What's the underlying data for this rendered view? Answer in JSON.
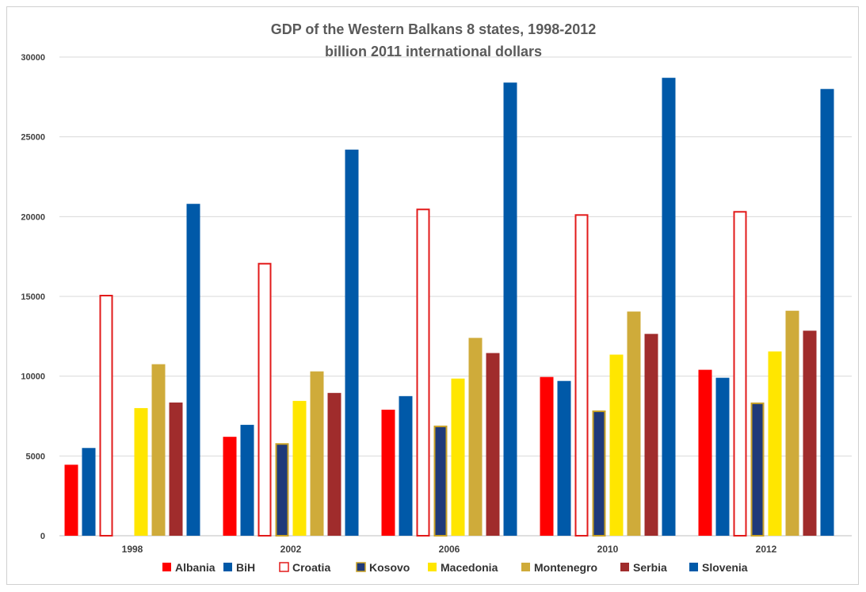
{
  "chart_data": {
    "type": "bar",
    "title": "GDP of the Western Balkans 8 states, 1998-2012",
    "subtitle": "billion 2011 international dollars",
    "categories": [
      "1998",
      "2002",
      "2006",
      "2010",
      "2012"
    ],
    "ylim": [
      0,
      30000
    ],
    "yticks": [
      0,
      5000,
      10000,
      15000,
      20000,
      25000,
      30000
    ],
    "grid": true,
    "legend_position": "bottom",
    "series": [
      {
        "name": "Albania",
        "color": "#ff0000",
        "style": "solid",
        "values": [
          4450,
          6200,
          7900,
          9950,
          10400
        ]
      },
      {
        "name": "BiH",
        "color": "#0059a8",
        "style": "solid",
        "values": [
          5500,
          6950,
          8750,
          9700,
          9900
        ]
      },
      {
        "name": "Croatia",
        "color": "#e21a1a",
        "style": "outline",
        "values": [
          15100,
          17100,
          20500,
          20150,
          20350
        ]
      },
      {
        "name": "Kosovo",
        "color": "#1f3a7a",
        "border": "#c9a227",
        "style": "bordered",
        "values": [
          null,
          5800,
          6900,
          7850,
          8350
        ]
      },
      {
        "name": "Macedonia",
        "color": "#ffe600",
        "style": "solid",
        "values": [
          8000,
          8450,
          9850,
          11350,
          11550
        ]
      },
      {
        "name": "Montenegro",
        "color": "#cfab3a",
        "style": "solid",
        "values": [
          10750,
          10300,
          12400,
          14050,
          14100
        ]
      },
      {
        "name": "Serbia",
        "color": "#a02c2c",
        "style": "solid",
        "values": [
          8350,
          8950,
          11450,
          12650,
          12850
        ]
      },
      {
        "name": "Slovenia",
        "color": "#0059a8",
        "style": "solid",
        "values": [
          20800,
          24200,
          28400,
          28700,
          28000
        ]
      }
    ]
  }
}
